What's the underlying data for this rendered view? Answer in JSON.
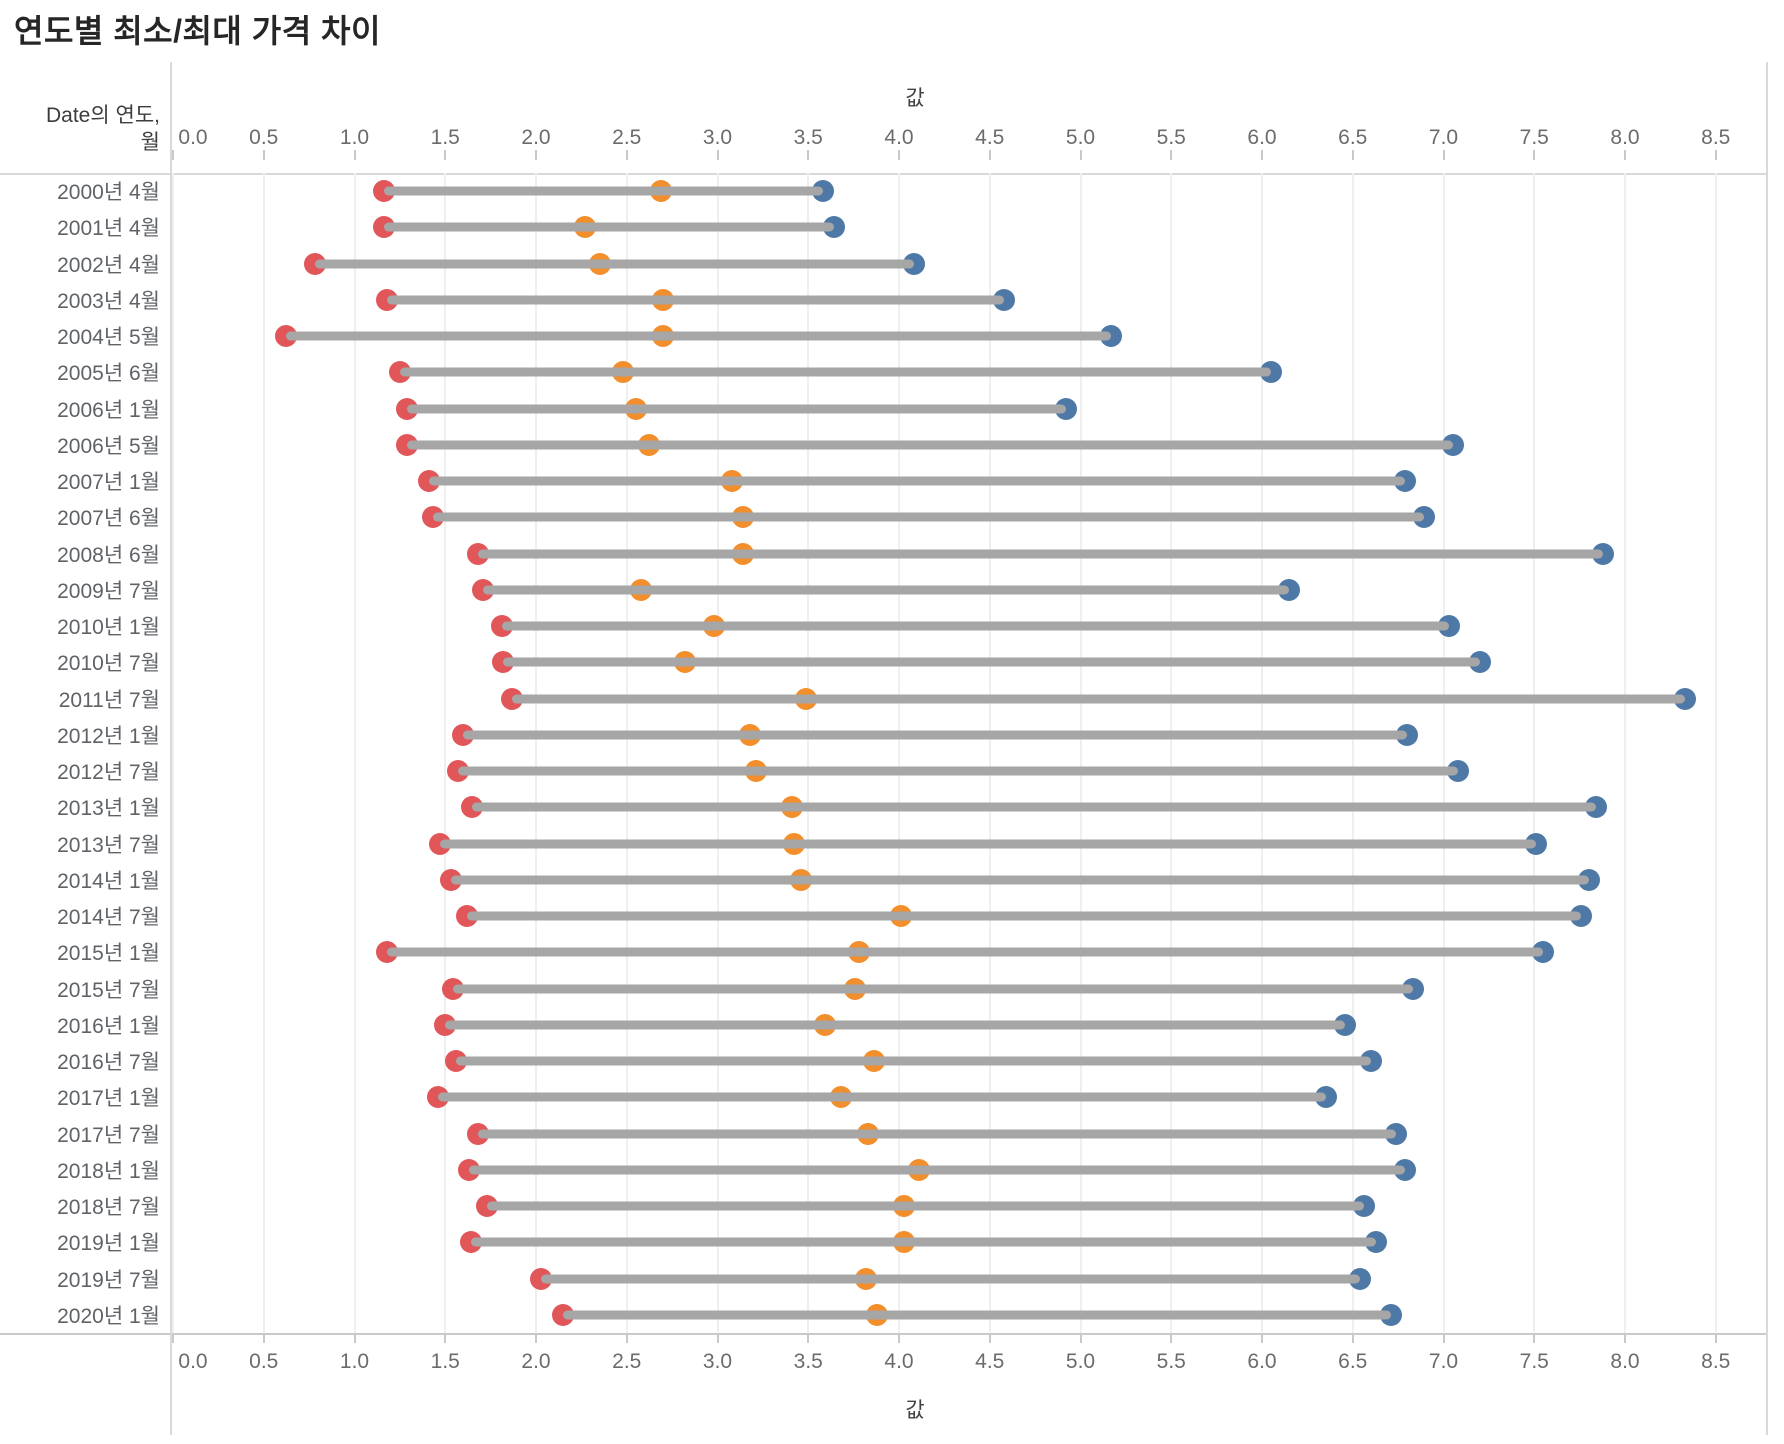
{
  "title": "연도별 최소/최대 가격 차이",
  "row_axis": {
    "header_line1": "Date의 연도,",
    "header_line2": "월"
  },
  "value_axis": {
    "title_top": "값",
    "title_bottom": "값",
    "ticks": [
      0.0,
      0.5,
      1.0,
      1.5,
      2.0,
      2.5,
      3.0,
      3.5,
      4.0,
      4.5,
      5.0,
      5.5,
      6.0,
      6.5,
      7.0,
      7.5,
      8.0,
      8.5
    ]
  },
  "colors": {
    "min_dot": "#e15759",
    "avg_dot": "#f28e2b",
    "max_dot": "#4e79a7",
    "connector": "#a6a6a6",
    "gridline": "#efefef",
    "axis_line": "#d9d9d9",
    "tick_label": "#6b6b6b",
    "row_label": "#5f6368",
    "title": "#262626"
  },
  "chart_data": {
    "type": "scatter",
    "subtype": "dumbbell-range-plot",
    "title": "연도별 최소/최대 가격 차이",
    "xlabel": "값",
    "ylabel": "Date의 연도, 월",
    "xlim": [
      0,
      8.78
    ],
    "xticks": [
      0.0,
      0.5,
      1.0,
      1.5,
      2.0,
      2.5,
      3.0,
      3.5,
      4.0,
      4.5,
      5.0,
      5.5,
      6.0,
      6.5,
      7.0,
      7.5,
      8.0,
      8.5
    ],
    "grid": true,
    "legend": "none",
    "categories": [
      "2000년 4월",
      "2001년 4월",
      "2002년 4월",
      "2003년 4월",
      "2004년 5월",
      "2005년 6월",
      "2006년 1월",
      "2006년 5월",
      "2007년 1월",
      "2007년 6월",
      "2008년 6월",
      "2009년 7월",
      "2010년 1월",
      "2010년 7월",
      "2011년 7월",
      "2012년 1월",
      "2012년 7월",
      "2013년 1월",
      "2013년 7월",
      "2014년 1월",
      "2014년 7월",
      "2015년 1월",
      "2015년 7월",
      "2016년 1월",
      "2016년 7월",
      "2017년 1월",
      "2017년 7월",
      "2018년 1월",
      "2018년 7월",
      "2019년 1월",
      "2019년 7월",
      "2020년 1월"
    ],
    "series": [
      {
        "name": "minimum",
        "color": "#e15759",
        "values": [
          1.16,
          1.16,
          0.78,
          1.18,
          0.62,
          1.25,
          1.29,
          1.29,
          1.41,
          1.43,
          1.68,
          1.71,
          1.81,
          1.82,
          1.87,
          1.6,
          1.57,
          1.65,
          1.47,
          1.53,
          1.62,
          1.18,
          1.54,
          1.5,
          1.56,
          1.46,
          1.68,
          1.63,
          1.73,
          1.64,
          2.03,
          2.15
        ]
      },
      {
        "name": "middle",
        "color": "#f28e2b",
        "values": [
          2.69,
          2.27,
          2.35,
          2.7,
          2.7,
          2.48,
          2.55,
          2.62,
          3.08,
          3.14,
          3.14,
          2.58,
          2.98,
          2.82,
          3.49,
          3.18,
          3.21,
          3.41,
          3.42,
          3.46,
          4.01,
          3.78,
          3.76,
          3.59,
          3.86,
          3.68,
          3.83,
          4.11,
          4.03,
          4.03,
          3.82,
          3.88
        ]
      },
      {
        "name": "maximum",
        "color": "#4e79a7",
        "values": [
          3.58,
          3.64,
          4.08,
          4.58,
          5.17,
          6.05,
          4.92,
          7.05,
          6.79,
          6.89,
          7.88,
          6.15,
          7.03,
          7.2,
          8.33,
          6.8,
          7.08,
          7.84,
          7.51,
          7.8,
          7.76,
          7.55,
          6.83,
          6.46,
          6.6,
          6.35,
          6.74,
          6.79,
          6.56,
          6.63,
          6.54,
          6.71
        ]
      }
    ]
  }
}
